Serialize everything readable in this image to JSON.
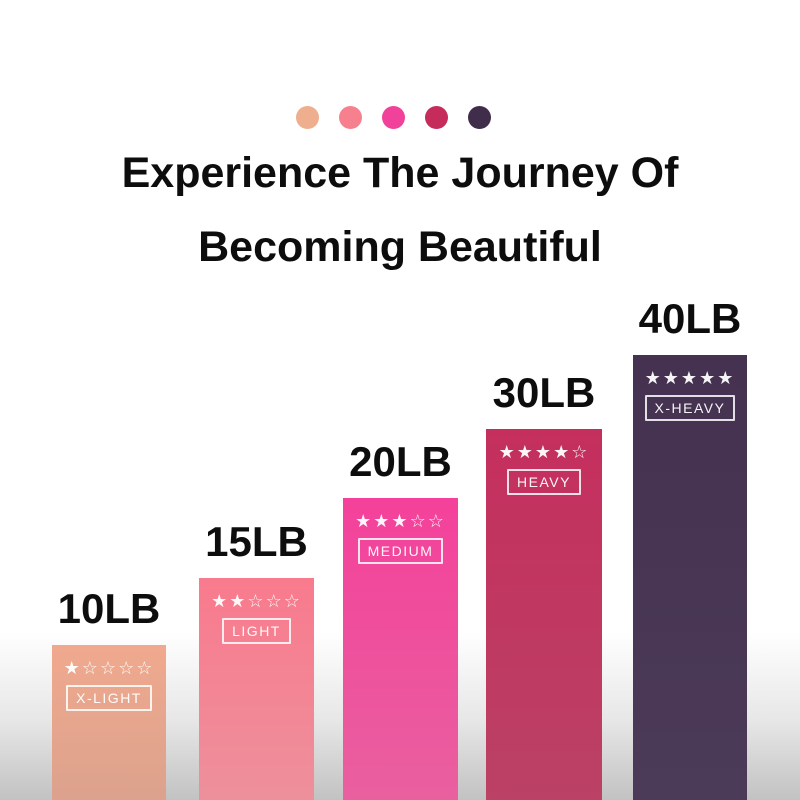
{
  "title": {
    "line1": "Experience The Journey Of",
    "line2": "Becoming Beautiful"
  },
  "palette_dots": [
    {
      "name": "x-light",
      "color": "#efae8d"
    },
    {
      "name": "light",
      "color": "#f7808f"
    },
    {
      "name": "medium",
      "color": "#f2419b"
    },
    {
      "name": "heavy",
      "color": "#c52b5b"
    },
    {
      "name": "x-heavy",
      "color": "#402c4b"
    }
  ],
  "chart_data": {
    "type": "bar",
    "title": "Experience The Journey Of Becoming Beautiful",
    "categories": [
      "X-LIGHT",
      "LIGHT",
      "MEDIUM",
      "HEAVY",
      "X-HEAVY"
    ],
    "values": [
      10,
      15,
      20,
      30,
      40
    ],
    "unit": "LB",
    "value_labels": [
      "10LB",
      "15LB",
      "20LB",
      "30LB",
      "40LB"
    ],
    "star_ratings": [
      1,
      2,
      3,
      4,
      5
    ],
    "stars_max": 5,
    "bar_colors": [
      "#eda78c",
      "#f87a8d",
      "#f4419b",
      "#c52f5e",
      "#473253"
    ],
    "xlabel": "",
    "ylabel": "",
    "grid": false,
    "axes": "none",
    "legend_position": "none"
  },
  "bands": [
    {
      "weight_label": "10LB",
      "name": "X-LIGHT",
      "stars_filled": 1,
      "stars_total": 5,
      "color_top": "#f0a98e",
      "color_bottom": "#dca28d"
    },
    {
      "weight_label": "15LB",
      "name": "LIGHT",
      "stars_filled": 2,
      "stars_total": 5,
      "color_top": "#f87a8d",
      "color_bottom": "#ee909c"
    },
    {
      "weight_label": "20LB",
      "name": "MEDIUM",
      "stars_filled": 3,
      "stars_total": 5,
      "color_top": "#f4419b",
      "color_bottom": "#e9609f"
    },
    {
      "weight_label": "30LB",
      "name": "HEAVY",
      "stars_filled": 4,
      "stars_total": 5,
      "color_top": "#c52f5e",
      "color_bottom": "#bb4166"
    },
    {
      "weight_label": "40LB",
      "name": "X-HEAVY",
      "stars_filled": 5,
      "stars_total": 5,
      "color_top": "#453150",
      "color_bottom": "#4b3a58"
    }
  ],
  "background": {
    "top_color": "#ffffff",
    "bottom_color": "#c2c2c2"
  },
  "star_glyphs": {
    "filled": "★",
    "empty": "☆"
  },
  "star_color": "#ffffff",
  "text_color": "#0d0d0d"
}
